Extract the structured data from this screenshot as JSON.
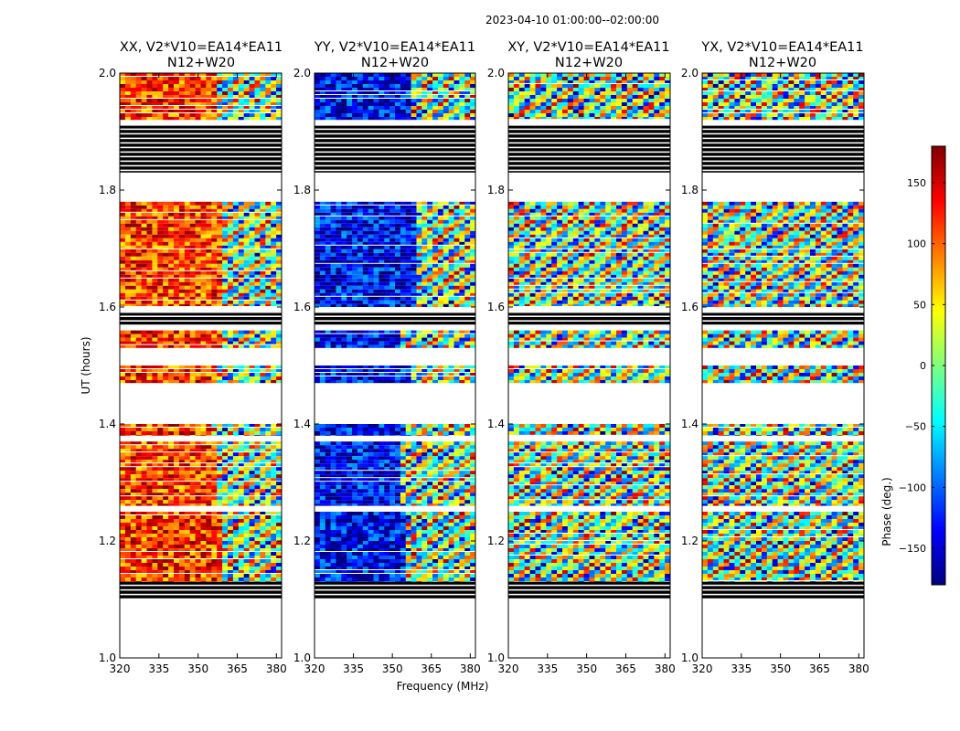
{
  "figure_title": "2023-04-10  01:00:00--02:00:00",
  "chart_data": [
    {
      "type": "heatmap",
      "title_line1": "XX, V2*V10=EA14*EA11",
      "title_line2": "N12+W20",
      "xlabel": "",
      "ylabel": "UT (hours)",
      "xlim": [
        320,
        382
      ],
      "ylim": [
        1.0,
        2.0
      ],
      "x_ticks": [
        "320",
        "335",
        "350",
        "365",
        "380"
      ],
      "y_ticks": [
        "1.0",
        "1.2",
        "1.4",
        "1.6",
        "1.8",
        "2.0"
      ]
    },
    {
      "type": "heatmap",
      "title_line1": "YY, V2*V10=EA14*EA11",
      "title_line2": "N12+W20",
      "xlabel": "Frequency (MHz)",
      "ylabel": "",
      "xlim": [
        320,
        382
      ],
      "ylim": [
        1.0,
        2.0
      ],
      "x_ticks": [
        "320",
        "335",
        "350",
        "365",
        "380"
      ],
      "y_ticks": [
        "1.0",
        "1.2",
        "1.4",
        "1.6",
        "1.8",
        "2.0"
      ]
    },
    {
      "type": "heatmap",
      "title_line1": "XY, V2*V10=EA14*EA11",
      "title_line2": "N12+W20",
      "xlabel": "",
      "ylabel": "",
      "xlim": [
        320,
        382
      ],
      "ylim": [
        1.0,
        2.0
      ],
      "x_ticks": [
        "320",
        "335",
        "350",
        "365",
        "380"
      ],
      "y_ticks": [
        "1.0",
        "1.2",
        "1.4",
        "1.6",
        "1.8",
        "2.0"
      ]
    },
    {
      "type": "heatmap",
      "title_line1": "YX, V2*V10=EA14*EA11",
      "title_line2": "N12+W20",
      "xlabel": "",
      "ylabel": "",
      "xlim": [
        320,
        382
      ],
      "ylim": [
        1.0,
        2.0
      ],
      "x_ticks": [
        "320",
        "335",
        "350",
        "365",
        "380"
      ],
      "y_ticks": [
        "1.0",
        "1.2",
        "1.4",
        "1.6",
        "1.8",
        "2.0"
      ]
    }
  ],
  "colorbar": {
    "label": "Phase (deg.)",
    "range": [
      -180,
      180
    ],
    "ticks": [
      150,
      100,
      50,
      0,
      -50,
      -100,
      -150
    ],
    "tick_labels": [
      "150",
      "100",
      "50",
      "0",
      "−50",
      "−100",
      "−150"
    ],
    "colormap": [
      "#00007f",
      "#0000ff",
      "#007fff",
      "#00ffff",
      "#7fff7f",
      "#ffff00",
      "#ff7f00",
      "#ff0000",
      "#7f0000"
    ]
  },
  "data_bands": [
    {
      "y0": 1.92,
      "y1": 2.0,
      "kind": "data"
    },
    {
      "y0": 1.83,
      "y1": 1.91,
      "kind": "flagged"
    },
    {
      "y0": 1.6,
      "y1": 1.78,
      "kind": "data"
    },
    {
      "y0": 1.57,
      "y1": 1.59,
      "kind": "flagged"
    },
    {
      "y0": 1.53,
      "y1": 1.56,
      "kind": "data"
    },
    {
      "y0": 1.47,
      "y1": 1.5,
      "kind": "data"
    },
    {
      "y0": 1.38,
      "y1": 1.4,
      "kind": "data"
    },
    {
      "y0": 1.26,
      "y1": 1.37,
      "kind": "data"
    },
    {
      "y0": 1.13,
      "y1": 1.25,
      "kind": "data"
    },
    {
      "y0": 1.1,
      "y1": 1.13,
      "kind": "flagged"
    }
  ]
}
